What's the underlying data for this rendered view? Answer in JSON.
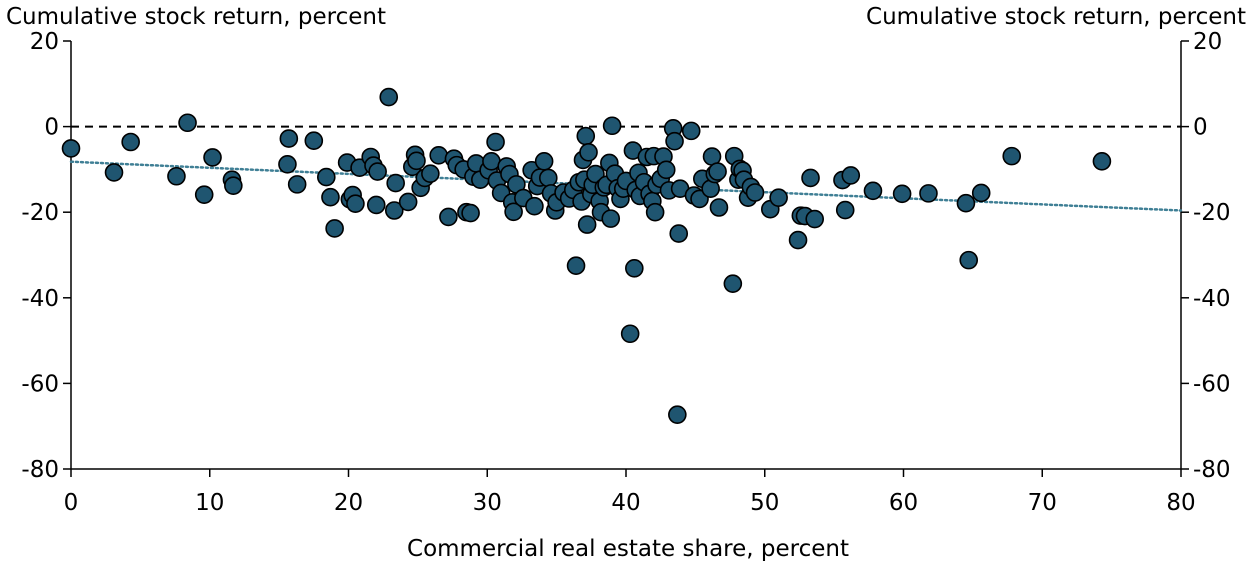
{
  "chart_data": {
    "type": "scatter",
    "title": "",
    "ylabel_left": "Cumulative stock return, percent",
    "ylabel_right": "Cumulative stock return, percent",
    "xlabel": "Commercial real estate share, percent",
    "xlim": [
      0,
      80
    ],
    "ylim": [
      -80,
      20
    ],
    "xticks": [
      0,
      10,
      20,
      30,
      40,
      50,
      60,
      70,
      80
    ],
    "yticks": [
      20,
      0,
      -20,
      -40,
      -60,
      -80
    ],
    "grid": false,
    "legend": "none",
    "reference_line_y": 0,
    "trendline": {
      "style": "dotted",
      "x": [
        0,
        80
      ],
      "y": [
        -8.2,
        -19.6
      ]
    },
    "colors": {
      "marker_fill": "#1f5570",
      "marker_edge": "#000000",
      "trendline": "#3f7f95",
      "reference": "#000000"
    },
    "points": [
      [
        0.0,
        -5.1
      ],
      [
        3.1,
        -10.7
      ],
      [
        4.3,
        -3.6
      ],
      [
        7.6,
        -11.6
      ],
      [
        8.4,
        0.9
      ],
      [
        9.6,
        -15.9
      ],
      [
        10.2,
        -7.2
      ],
      [
        11.6,
        -12.4
      ],
      [
        11.7,
        -13.8
      ],
      [
        15.6,
        -8.8
      ],
      [
        15.7,
        -2.8
      ],
      [
        16.3,
        -13.5
      ],
      [
        17.5,
        -3.3
      ],
      [
        18.4,
        -11.8
      ],
      [
        18.7,
        -16.5
      ],
      [
        19.0,
        -23.8
      ],
      [
        19.9,
        -8.4
      ],
      [
        20.1,
        -17.0
      ],
      [
        20.3,
        -16.0
      ],
      [
        20.5,
        -18.0
      ],
      [
        20.8,
        -9.6
      ],
      [
        21.6,
        -7.1
      ],
      [
        21.8,
        -9.1
      ],
      [
        22.0,
        -18.3
      ],
      [
        22.1,
        -10.5
      ],
      [
        22.9,
        6.9
      ],
      [
        23.3,
        -19.6
      ],
      [
        23.4,
        -13.2
      ],
      [
        24.3,
        -17.6
      ],
      [
        24.6,
        -9.4
      ],
      [
        24.8,
        -6.6
      ],
      [
        24.9,
        -8.0
      ],
      [
        25.2,
        -14.3
      ],
      [
        25.5,
        -12.0
      ],
      [
        25.9,
        -11.0
      ],
      [
        26.5,
        -6.7
      ],
      [
        27.2,
        -21.1
      ],
      [
        27.6,
        -7.5
      ],
      [
        27.8,
        -9.0
      ],
      [
        28.3,
        -10.0
      ],
      [
        28.5,
        -20.0
      ],
      [
        28.8,
        -20.2
      ],
      [
        29.0,
        -11.7
      ],
      [
        29.2,
        -8.6
      ],
      [
        29.5,
        -12.4
      ],
      [
        30.1,
        -10.2
      ],
      [
        30.3,
        -8.1
      ],
      [
        30.6,
        -3.6
      ],
      [
        30.7,
        -12.6
      ],
      [
        31.0,
        -15.5
      ],
      [
        31.4,
        -9.3
      ],
      [
        31.6,
        -11.1
      ],
      [
        31.8,
        -17.7
      ],
      [
        31.9,
        -19.9
      ],
      [
        32.1,
        -13.5
      ],
      [
        32.6,
        -16.7
      ],
      [
        33.2,
        -10.2
      ],
      [
        33.4,
        -18.6
      ],
      [
        33.6,
        -13.9
      ],
      [
        33.8,
        -11.9
      ],
      [
        34.1,
        -8.1
      ],
      [
        34.4,
        -12.0
      ],
      [
        34.6,
        -15.6
      ],
      [
        34.9,
        -19.6
      ],
      [
        35.0,
        -17.7
      ],
      [
        35.5,
        -15.4
      ],
      [
        35.9,
        -16.8
      ],
      [
        36.2,
        -14.8
      ],
      [
        36.4,
        -32.5
      ],
      [
        36.6,
        -13.0
      ],
      [
        36.8,
        -17.5
      ],
      [
        36.9,
        -7.8
      ],
      [
        37.0,
        -12.4
      ],
      [
        37.1,
        -2.2
      ],
      [
        37.2,
        -22.9
      ],
      [
        37.3,
        -6.0
      ],
      [
        37.5,
        -15.8
      ],
      [
        37.6,
        -13.6
      ],
      [
        37.8,
        -11.1
      ],
      [
        38.1,
        -17.4
      ],
      [
        38.2,
        -20.0
      ],
      [
        38.4,
        -14.2
      ],
      [
        38.6,
        -13.6
      ],
      [
        38.8,
        -8.5
      ],
      [
        38.9,
        -21.5
      ],
      [
        39.0,
        0.2
      ],
      [
        39.2,
        -11.0
      ],
      [
        39.4,
        -14.4
      ],
      [
        39.6,
        -16.9
      ],
      [
        39.8,
        -14.5
      ],
      [
        40.0,
        -12.7
      ],
      [
        40.3,
        -48.4
      ],
      [
        40.5,
        -5.6
      ],
      [
        40.6,
        -33.1
      ],
      [
        40.7,
        -14.8
      ],
      [
        40.9,
        -10.8
      ],
      [
        41.0,
        -16.2
      ],
      [
        41.3,
        -13.0
      ],
      [
        41.5,
        -7.1
      ],
      [
        41.7,
        -15.7
      ],
      [
        41.9,
        -17.4
      ],
      [
        42.0,
        -6.9
      ],
      [
        42.1,
        -20.0
      ],
      [
        42.2,
        -13.6
      ],
      [
        42.5,
        -12.2
      ],
      [
        42.7,
        -7.0
      ],
      [
        42.9,
        -10.1
      ],
      [
        43.1,
        -14.9
      ],
      [
        43.4,
        -0.4
      ],
      [
        43.5,
        -3.4
      ],
      [
        43.7,
        -67.3
      ],
      [
        43.8,
        -25.0
      ],
      [
        43.9,
        -14.5
      ],
      [
        44.7,
        -1.0
      ],
      [
        44.9,
        -16.1
      ],
      [
        45.3,
        -16.9
      ],
      [
        45.5,
        -12.2
      ],
      [
        46.1,
        -14.5
      ],
      [
        46.2,
        -7.0
      ],
      [
        46.4,
        -11.1
      ],
      [
        46.6,
        -10.5
      ],
      [
        46.7,
        -18.9
      ],
      [
        47.7,
        -36.7
      ],
      [
        47.8,
        -6.9
      ],
      [
        48.1,
        -12.4
      ],
      [
        48.2,
        -9.9
      ],
      [
        48.4,
        -10.3
      ],
      [
        48.5,
        -12.4
      ],
      [
        48.8,
        -16.6
      ],
      [
        49.0,
        -14.1
      ],
      [
        49.3,
        -15.4
      ],
      [
        50.4,
        -19.3
      ],
      [
        51.0,
        -16.6
      ],
      [
        52.4,
        -26.5
      ],
      [
        52.6,
        -20.8
      ],
      [
        52.9,
        -20.9
      ],
      [
        53.3,
        -12.0
      ],
      [
        53.6,
        -21.6
      ],
      [
        55.6,
        -12.5
      ],
      [
        55.8,
        -19.5
      ],
      [
        56.2,
        -11.4
      ],
      [
        57.8,
        -15.0
      ],
      [
        59.9,
        -15.7
      ],
      [
        61.8,
        -15.6
      ],
      [
        64.5,
        -17.9
      ],
      [
        64.7,
        -31.2
      ],
      [
        65.6,
        -15.5
      ],
      [
        67.8,
        -6.9
      ],
      [
        74.3,
        -8.1
      ]
    ]
  }
}
